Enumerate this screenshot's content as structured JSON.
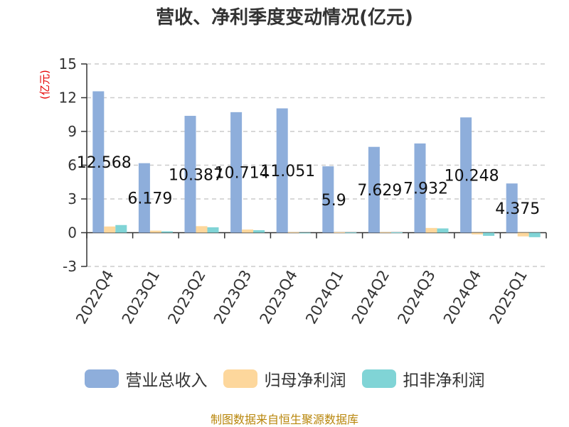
{
  "title": "营收、净利季度变动情况(亿元)",
  "source": "制图数据来自恒生聚源数据库",
  "colors": {
    "revenue": "#8eaedb",
    "net_profit": "#fdd79c",
    "deducted_profit": "#80d4d6",
    "unit": "#e60000",
    "grid": "#cccccc",
    "axis": "#333333"
  },
  "chart_data": {
    "type": "bar",
    "title": "营收、净利季度变动情况(亿元)",
    "ylabel": "(亿元)",
    "ylim": [
      -3,
      15
    ],
    "yticks": [
      -3,
      0,
      3,
      6,
      9,
      12,
      15
    ],
    "grid": true,
    "legend_position": "bottom",
    "categories": [
      "2022Q4",
      "2023Q1",
      "2023Q2",
      "2023Q3",
      "2023Q4",
      "2024Q1",
      "2024Q2",
      "2024Q3",
      "2024Q4",
      "2025Q1"
    ],
    "series": [
      {
        "name": "营业总收入",
        "color": "#8eaedb",
        "values": [
          12.568,
          6.179,
          10.387,
          10.714,
          11.051,
          5.9,
          7.629,
          7.932,
          10.248,
          4.375
        ],
        "labels": [
          "12.568",
          "6.179",
          "10.387",
          "10.714",
          "11.051",
          "5.9",
          "7.629",
          "7.932",
          "10.248",
          "4.375"
        ]
      },
      {
        "name": "归母净利润",
        "color": "#fdd79c",
        "values": [
          0.55,
          0.18,
          0.58,
          0.28,
          0.05,
          0.04,
          0.05,
          0.42,
          -0.15,
          -0.33
        ]
      },
      {
        "name": "扣非净利润",
        "color": "#80d4d6",
        "values": [
          0.68,
          0.12,
          0.48,
          0.22,
          -0.03,
          0.02,
          0.03,
          0.38,
          -0.28,
          -0.4
        ]
      }
    ]
  }
}
